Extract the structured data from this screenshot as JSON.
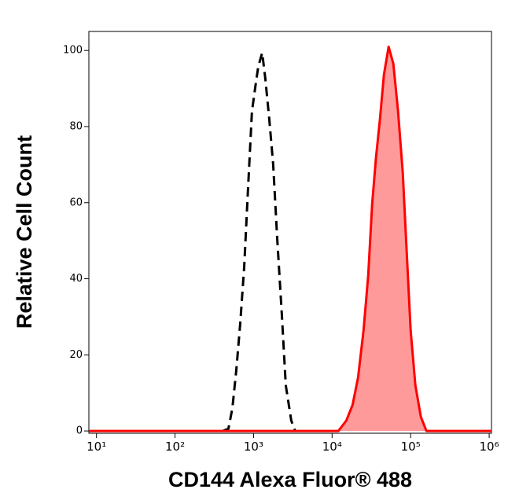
{
  "chart_data": {
    "type": "histogram-overlay",
    "x_label": "CD144 Alexa Fluor® 488",
    "y_label": "Relative Cell Count",
    "log_x": true,
    "xlim": [
      8,
      1070000
    ],
    "xticks": [
      {
        "value": 10,
        "label": "10¹"
      },
      {
        "value": 100,
        "label": "10²"
      },
      {
        "value": 1000,
        "label": "10³"
      },
      {
        "value": 10000,
        "label": "10⁴"
      },
      {
        "value": 100000,
        "label": "10⁵"
      },
      {
        "value": 1000000,
        "label": "10⁶"
      }
    ],
    "ylim": [
      -0.6,
      105
    ],
    "yticks": [
      0,
      20,
      40,
      60,
      80,
      100
    ],
    "series": [
      {
        "style": "dashed",
        "color": "#000000",
        "filled": false,
        "x": [
          407,
          479,
          537,
          603,
          676,
          759,
          851,
          955,
          1072,
          1148,
          1288,
          1413,
          1585,
          1778,
          1995,
          2291,
          2570,
          3020,
          3388
        ],
        "values": [
          0,
          0.6,
          6,
          16,
          28,
          43,
          63.6,
          84,
          91.5,
          95.7,
          99.4,
          92.6,
          82,
          70,
          51,
          30.6,
          12,
          2.7,
          0
        ]
      },
      {
        "style": "solid",
        "color": "#ff0000",
        "fill": "#ff9a9a",
        "filled": true,
        "x": [
          8,
          10000,
          12023,
          15136,
          18197,
          21380,
          25119,
          28840,
          32359,
          36308,
          40738,
          45709,
          52481,
          60256,
          69183,
          79433,
          89125,
          100000,
          114815,
          134896,
          158489,
          1070000
        ],
        "values": [
          0,
          0,
          0,
          2.7,
          6.8,
          14,
          26.4,
          41,
          59.5,
          72,
          82,
          93.6,
          101,
          96.5,
          84,
          67.8,
          47,
          26.4,
          12,
          3.7,
          0,
          0
        ]
      }
    ]
  }
}
